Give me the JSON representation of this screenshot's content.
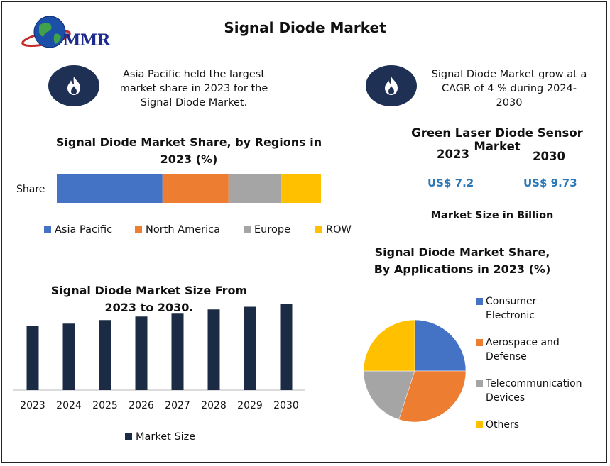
{
  "header": {
    "title": "Signal Diode Market",
    "logo_text": "MMR"
  },
  "callouts": [
    {
      "text": "Asia Pacific held the largest market share in 2023 for the Signal Diode Market.",
      "icon": "flame-icon"
    },
    {
      "text": "Signal Diode Market grow at a CAGR of 4 % during 2024-2030",
      "icon": "flame-icon"
    }
  ],
  "sensor": {
    "title": "Green Laser Diode Sensor Market",
    "year_a": "2023",
    "year_b": "2030",
    "value_a": "US$ 7.2",
    "value_b": "US$ 9.73",
    "note": "Market Size in Billion"
  },
  "colors": {
    "blue": "#4472c4",
    "orange": "#ed7d31",
    "gray": "#a5a5a5",
    "yellow": "#ffc000",
    "navy": "#1b2b44"
  },
  "chart_data": [
    {
      "type": "bar",
      "orientation": "horizontal-stacked",
      "title": "Signal Diode Market Share, by Regions in 2023 (%)",
      "categories": [
        "Share"
      ],
      "series": [
        {
          "name": "Asia Pacific",
          "values": [
            40
          ],
          "color": "#4472c4"
        },
        {
          "name": "North America",
          "values": [
            25
          ],
          "color": "#ed7d31"
        },
        {
          "name": "Europe",
          "values": [
            20
          ],
          "color": "#a5a5a5"
        },
        {
          "name": "ROW",
          "values": [
            15
          ],
          "color": "#ffc000"
        }
      ],
      "legend": "bottom"
    },
    {
      "type": "bar",
      "title": "Signal Diode Market Size From 2023 to 2030.",
      "categories": [
        "2023",
        "2024",
        "2025",
        "2026",
        "2027",
        "2028",
        "2029",
        "2030"
      ],
      "series": [
        {
          "name": "Market Size",
          "values": [
            7.2,
            7.5,
            7.9,
            8.3,
            8.7,
            9.1,
            9.4,
            9.73
          ],
          "color": "#1b2b44"
        }
      ],
      "ylim": [
        0,
        10
      ],
      "legend": "bottom"
    },
    {
      "type": "pie",
      "title": "Signal Diode Market Share, By Applications in 2023 (%)",
      "slices": [
        {
          "name": "Consumer Electronic",
          "value": 25,
          "color": "#4472c4"
        },
        {
          "name": "Aerospace and Defense",
          "value": 30,
          "color": "#ed7d31"
        },
        {
          "name": "Telecommunication Devices",
          "value": 20,
          "color": "#a5a5a5"
        },
        {
          "name": "Others",
          "value": 25,
          "color": "#ffc000"
        }
      ],
      "legend": "right"
    }
  ]
}
